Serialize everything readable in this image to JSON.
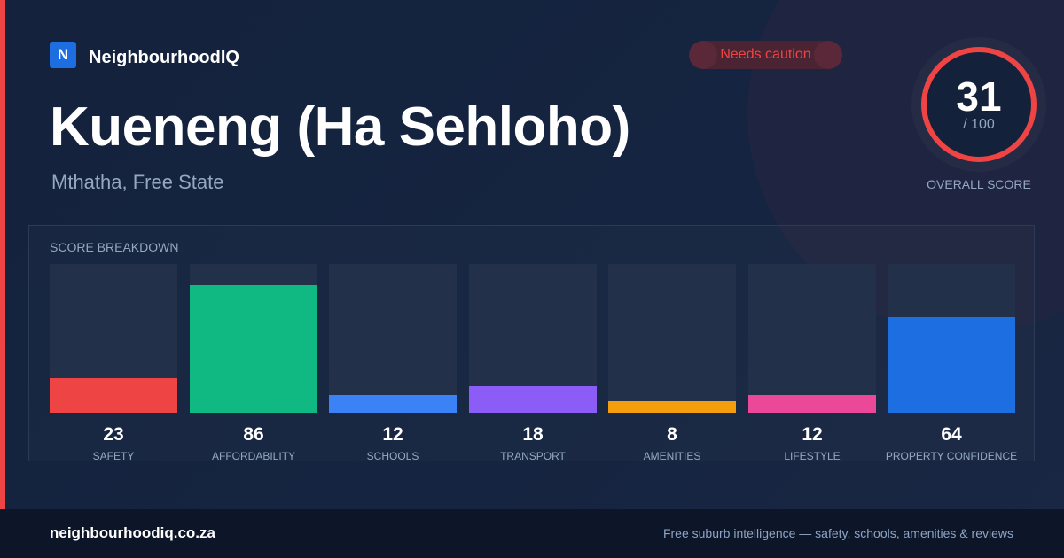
{
  "brand": {
    "logo_letter": "N",
    "name": "NeighbourhoodIQ",
    "color": "#1d6ee0"
  },
  "status_badge": {
    "text": "Needs caution",
    "color": "#ef4444"
  },
  "location": {
    "title": "Kueneng (Ha Sehloho)",
    "subtitle": "Mthatha, Free State"
  },
  "overall_score": {
    "value": "31",
    "max_label": "/ 100",
    "fraction": 0.31,
    "label": "OVERALL SCORE",
    "ring_color": "#ef4444"
  },
  "breakdown": {
    "title": "SCORE BREAKDOWN",
    "items": [
      {
        "label": "SAFETY",
        "value": "23",
        "score": 23,
        "color": "#ef4444"
      },
      {
        "label": "AFFORDABILITY",
        "value": "86",
        "score": 86,
        "color": "#10b981"
      },
      {
        "label": "SCHOOLS",
        "value": "12",
        "score": 12,
        "color": "#3b82f6"
      },
      {
        "label": "TRANSPORT",
        "value": "18",
        "score": 18,
        "color": "#8b5cf6"
      },
      {
        "label": "AMENITIES",
        "value": "8",
        "score": 8,
        "color": "#f59e0b"
      },
      {
        "label": "LIFESTYLE",
        "value": "12",
        "score": 12,
        "color": "#ec4899"
      },
      {
        "label": "PROPERTY CONFIDENCE",
        "value": "64",
        "score": 64,
        "color": "#1d6ee0"
      }
    ]
  },
  "footer": {
    "domain": "neighbourhoodiq.co.za",
    "tagline": "Free suburb intelligence — safety, schools, amenities & reviews"
  }
}
